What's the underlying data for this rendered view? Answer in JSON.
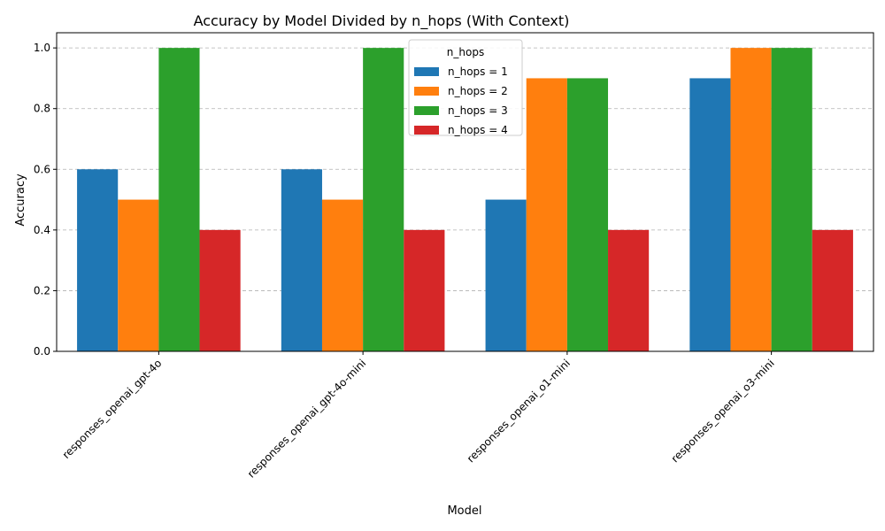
{
  "chart_data": {
    "type": "bar",
    "title": "Accuracy by Model Divided by n_hops (With Context)",
    "xlabel": "Model",
    "ylabel": "Accuracy",
    "ylim": [
      0,
      1.05
    ],
    "yticks": [
      "0.0",
      "0.2",
      "0.4",
      "0.6",
      "0.8",
      "1.0"
    ],
    "grid": "y, dashed",
    "categories": [
      "responses_openai_gpt-4o",
      "responses_openai_gpt-4o-mini",
      "responses_openai_o1-mini",
      "responses_openai_o3-mini"
    ],
    "series": [
      {
        "name": "n_hops = 1",
        "color": "#1f77b4",
        "values": [
          0.6,
          0.6,
          0.5,
          0.9
        ]
      },
      {
        "name": "n_hops = 2",
        "color": "#ff7f0e",
        "values": [
          0.5,
          0.5,
          0.9,
          1.0
        ]
      },
      {
        "name": "n_hops = 3",
        "color": "#2ca02c",
        "values": [
          1.0,
          1.0,
          0.9,
          1.0
        ]
      },
      {
        "name": "n_hops = 4",
        "color": "#d62728",
        "values": [
          0.4,
          0.4,
          0.4,
          0.4
        ]
      }
    ],
    "legend": {
      "title": "n_hops",
      "placement": "upper-center"
    }
  }
}
